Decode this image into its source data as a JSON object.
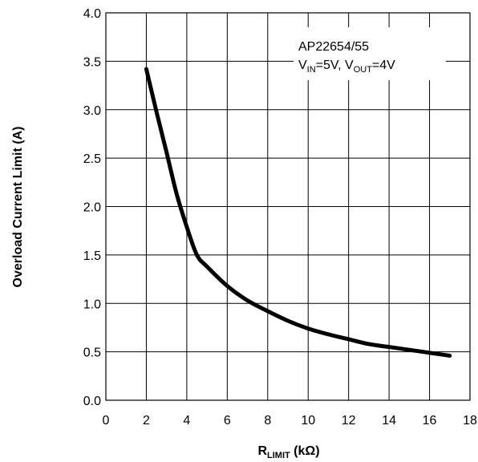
{
  "chart_data": {
    "type": "line",
    "title": "",
    "xlabel": {
      "main": "R",
      "sub": "LIMIT",
      "unit": " (kΩ)"
    },
    "ylabel": "Overload Current Limit (A)",
    "xlim": [
      0,
      18
    ],
    "ylim": [
      0,
      4
    ],
    "x_ticks": [
      0,
      2,
      4,
      6,
      8,
      10,
      12,
      14,
      16,
      18
    ],
    "x_tick_labels": [
      "0",
      "2",
      "4",
      "6",
      "8",
      "10",
      "12",
      "14",
      "16",
      "18"
    ],
    "y_ticks": [
      0,
      0.5,
      1,
      1.5,
      2,
      2.5,
      3,
      3.5,
      4
    ],
    "y_tick_labels": [
      "0.0",
      "0.5",
      "1.0",
      "1.5",
      "2.0",
      "2.5",
      "3.0",
      "3.5",
      "4.0"
    ],
    "grid": true,
    "annotation": {
      "line1": "AP22654/55",
      "line2_parts": [
        {
          "text": "V"
        },
        {
          "text": "IN",
          "sub": true
        },
        {
          "text": "=5V, V"
        },
        {
          "text": "OUT",
          "sub": true
        },
        {
          "text": "=4V"
        }
      ]
    },
    "series": [
      {
        "color": "#000000",
        "x": [
          2,
          2.5,
          3,
          3.5,
          4,
          4.5,
          5,
          6,
          7,
          8,
          9,
          10,
          11,
          12,
          13,
          14,
          15,
          16,
          17
        ],
        "y": [
          3.42,
          2.98,
          2.56,
          2.13,
          1.79,
          1.5,
          1.38,
          1.18,
          1.03,
          0.92,
          0.82,
          0.74,
          0.68,
          0.63,
          0.58,
          0.55,
          0.52,
          0.49,
          0.46
        ]
      }
    ]
  }
}
